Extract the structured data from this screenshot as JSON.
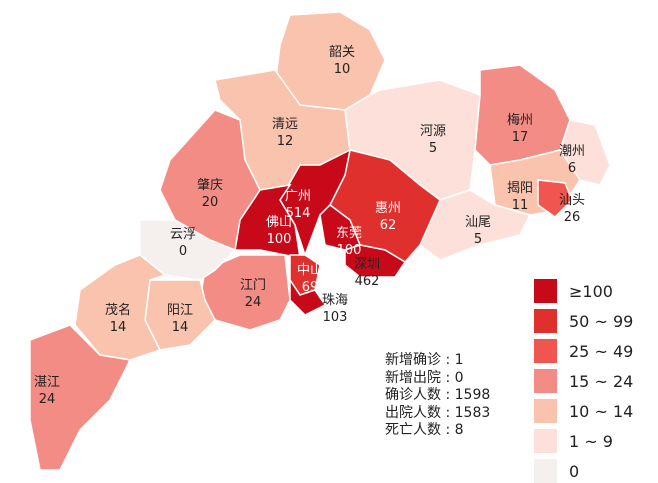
{
  "regions": [
    {
      "name": "韶关",
      "count": "10"
    },
    {
      "name": "清远",
      "count": "12"
    },
    {
      "name": "河源",
      "count": "5"
    },
    {
      "name": "梅州",
      "count": "17"
    },
    {
      "name": "潮州",
      "count": "6"
    },
    {
      "name": "揭阳",
      "count": "11"
    },
    {
      "name": "汕头",
      "count": "26"
    },
    {
      "name": "汕尾",
      "count": "5"
    },
    {
      "name": "惠州",
      "count": "62"
    },
    {
      "name": "广州",
      "count": "514"
    },
    {
      "name": "佛山",
      "count": "100"
    },
    {
      "name": "东莞",
      "count": "100"
    },
    {
      "name": "深圳",
      "count": "462"
    },
    {
      "name": "中山",
      "count": "69"
    },
    {
      "name": "珠海",
      "count": "103"
    },
    {
      "name": "江门",
      "count": "24"
    },
    {
      "name": "肇庆",
      "count": "20"
    },
    {
      "name": "云浮",
      "count": "0"
    },
    {
      "name": "阳江",
      "count": "14"
    },
    {
      "name": "茂名",
      "count": "14"
    },
    {
      "name": "湛江",
      "count": "24"
    }
  ],
  "stats": [
    {
      "label": "新增确诊",
      "value": "1"
    },
    {
      "label": "新增出院",
      "value": "0"
    },
    {
      "label": "确诊人数",
      "value": "1598"
    },
    {
      "label": "出院人数",
      "value": "1583"
    },
    {
      "label": "死亡人数",
      "value": "8"
    }
  ],
  "legend": [
    {
      "label": "≥100",
      "min": 100,
      "color": "#c8091a"
    },
    {
      "label": "50 ~ 99",
      "min": 50,
      "color": "#e0302d"
    },
    {
      "label": "25 ~ 49",
      "min": 25,
      "color": "#f0564f"
    },
    {
      "label": "15 ~ 24",
      "min": 15,
      "color": "#f48c86"
    },
    {
      "label": "10 ~ 14",
      "min": 10,
      "color": "#f9c3ae"
    },
    {
      "label": "1 ~ 9",
      "min": 1,
      "color": "#fde0d9"
    },
    {
      "label": "0",
      "min": 0,
      "color": "#f5efee"
    }
  ]
}
